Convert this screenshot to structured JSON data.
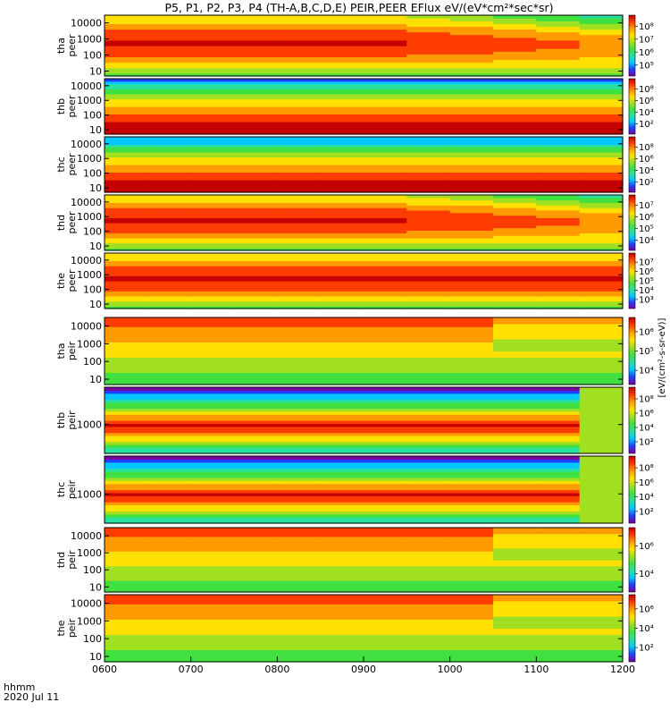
{
  "title": "P5, P1, P2, P3, P4 (TH-A,B,C,D,E) PEIR,PEER EFlux eV/(eV*cm²*sec*sr)",
  "colorbar_unit": "[eV/(cm²-s-sr-eV)]",
  "xaxis": {
    "ticks": [
      "0600",
      "0700",
      "0800",
      "0900",
      "1000",
      "1100",
      "1200"
    ],
    "label_line1": "hhmm",
    "label_line2": "2020 Jul 11"
  },
  "colormap": [
    "#7c00a0",
    "#2040ff",
    "#00c8ff",
    "#28e0a0",
    "#40e040",
    "#a0e020",
    "#ffe000",
    "#ff9a00",
    "#ff3c00",
    "#c40000"
  ],
  "chart_data": [
    {
      "type": "heatmap",
      "probe": "tha",
      "species": "peer",
      "label_line1": "tha",
      "label_line2": "peer",
      "x": [
        600,
        1200
      ],
      "ylim": [
        5,
        30000
      ],
      "ylog": true,
      "yticks": [
        "10000",
        "1000",
        "100",
        "10"
      ],
      "zlim": [
        100000,
        1000000000
      ],
      "cb_ticks": [
        "10⁸",
        "10⁷",
        "10⁶",
        "10⁵"
      ]
    },
    {
      "type": "heatmap",
      "probe": "thb",
      "species": "peer",
      "label_line1": "thb",
      "label_line2": "peer",
      "x": [
        600,
        1200
      ],
      "ylim": [
        5,
        30000
      ],
      "ylog": true,
      "yticks": [
        "10000",
        "1000",
        "100",
        "10"
      ],
      "zlim": [
        100,
        1000000000
      ],
      "cb_ticks": [
        "10⁸",
        "10⁶",
        "10⁴",
        "10²"
      ]
    },
    {
      "type": "heatmap",
      "probe": "thc",
      "species": "peer",
      "label_line1": "thc",
      "label_line2": "peer",
      "x": [
        600,
        1200
      ],
      "ylim": [
        5,
        30000
      ],
      "ylog": true,
      "yticks": [
        "10000",
        "1000",
        "100",
        "10"
      ],
      "zlim": [
        100,
        1000000000
      ],
      "cb_ticks": [
        "10⁸",
        "10⁶",
        "10⁴",
        "10²"
      ]
    },
    {
      "type": "heatmap",
      "probe": "thd",
      "species": "peer",
      "label_line1": "thd",
      "label_line2": "peer",
      "x": [
        600,
        1200
      ],
      "ylim": [
        5,
        30000
      ],
      "ylog": true,
      "yticks": [
        "10000",
        "1000",
        "100",
        "10"
      ],
      "zlim": [
        1000,
        1000000000
      ],
      "cb_ticks": [
        "10⁷",
        "10⁶",
        "10⁵",
        "10⁴"
      ]
    },
    {
      "type": "heatmap",
      "probe": "the",
      "species": "peer",
      "label_line1": "the",
      "label_line2": "peer",
      "x": [
        600,
        1200
      ],
      "ylim": [
        5,
        30000
      ],
      "ylog": true,
      "yticks": [
        "10000",
        "1000",
        "100",
        "10"
      ],
      "zlim": [
        100,
        1000000000
      ],
      "cb_ticks": [
        "10⁷",
        "10⁶",
        "10⁵",
        "10⁴",
        "10³"
      ]
    },
    {
      "type": "heatmap",
      "probe": "tha",
      "species": "peir",
      "label_line1": "tha",
      "label_line2": "peir",
      "x": [
        600,
        1200
      ],
      "ylim": [
        5,
        30000
      ],
      "ylog": true,
      "yticks": [
        "10000",
        "1000",
        "100",
        "10"
      ],
      "zlim": [
        1000,
        1000000000
      ],
      "cb_ticks": [
        "10⁶",
        "10⁵",
        "10⁴"
      ]
    },
    {
      "type": "heatmap",
      "probe": "thb",
      "species": "peir",
      "label_line1": "thb",
      "label_line2": "peir",
      "x": [
        600,
        1200
      ],
      "ylim": [
        200,
        8000
      ],
      "ylog": true,
      "yticks": [
        "1000"
      ],
      "zlim": [
        100,
        1000000000
      ],
      "cb_ticks": [
        "10⁸",
        "10⁶",
        "10⁴",
        "10²"
      ]
    },
    {
      "type": "heatmap",
      "probe": "thc",
      "species": "peir",
      "label_line1": "thc",
      "label_line2": "peir",
      "x": [
        600,
        1200
      ],
      "ylim": [
        200,
        8000
      ],
      "ylog": true,
      "yticks": [
        "1000"
      ],
      "zlim": [
        100,
        1000000000
      ],
      "cb_ticks": [
        "10⁸",
        "10⁶",
        "10⁴",
        "10²"
      ]
    },
    {
      "type": "heatmap",
      "probe": "thd",
      "species": "peir",
      "label_line1": "thd",
      "label_line2": "peir",
      "x": [
        600,
        1200
      ],
      "ylim": [
        5,
        30000
      ],
      "ylog": true,
      "yticks": [
        "10000",
        "1000",
        "100",
        "10"
      ],
      "zlim": [
        1000,
        1000000000
      ],
      "cb_ticks": [
        "10⁶",
        "10⁴"
      ]
    },
    {
      "type": "heatmap",
      "probe": "the",
      "species": "peir",
      "label_line1": "the",
      "label_line2": "peir",
      "x": [
        600,
        1200
      ],
      "ylim": [
        5,
        30000
      ],
      "ylog": true,
      "yticks": [
        "10000",
        "1000",
        "100",
        "10"
      ],
      "zlim": [
        100,
        1000000000
      ],
      "cb_ticks": [
        "10⁶",
        "10⁴",
        "10²"
      ]
    }
  ]
}
